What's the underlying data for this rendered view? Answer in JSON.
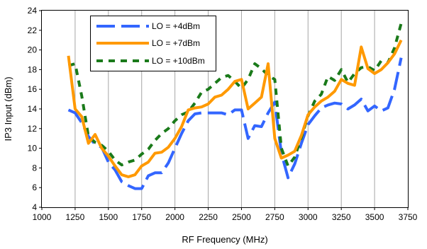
{
  "chart_data": {
    "type": "line",
    "title": "",
    "xlabel": "RF Frequency (MHz)",
    "ylabel": "IP3 Input (dBm)",
    "xlim": [
      1000,
      3750
    ],
    "ylim": [
      4,
      24
    ],
    "xticks": [
      1000,
      1250,
      1500,
      1750,
      2000,
      2250,
      2500,
      2750,
      3000,
      3250,
      3500,
      3750
    ],
    "yticks": [
      4,
      6,
      8,
      10,
      12,
      14,
      16,
      18,
      20,
      22,
      24
    ],
    "grid": "vertical",
    "legend": "top-left inside plot",
    "series": [
      {
        "name": "LO = +4dBm",
        "color": "#3366ff",
        "style": "long-dash",
        "x": [
          1200,
          1250,
          1300,
          1350,
          1400,
          1450,
          1500,
          1550,
          1600,
          1650,
          1700,
          1750,
          1800,
          1850,
          1900,
          1950,
          2000,
          2050,
          2100,
          2150,
          2200,
          2250,
          2300,
          2350,
          2400,
          2450,
          2500,
          2550,
          2600,
          2650,
          2700,
          2750,
          2800,
          2850,
          2900,
          2950,
          3000,
          3050,
          3100,
          3150,
          3200,
          3250,
          3300,
          3350,
          3400,
          3450,
          3500,
          3550,
          3600,
          3650,
          3700
        ],
        "y": [
          13.9,
          13.6,
          12.6,
          11.2,
          10.4,
          10.1,
          8.6,
          7.8,
          6.6,
          6.2,
          5.9,
          5.9,
          7.2,
          7.5,
          7.5,
          8.5,
          10.0,
          11.5,
          12.8,
          13.5,
          13.6,
          13.6,
          13.6,
          13.6,
          13.4,
          13.9,
          13.9,
          11.0,
          12.3,
          12.2,
          13.6,
          14.7,
          9.5,
          7.0,
          8.4,
          10.5,
          12.4,
          13.3,
          14.1,
          14.4,
          14.6,
          14.5,
          14.0,
          14.4,
          15.0,
          13.8,
          14.3,
          13.8,
          14.1,
          16.0,
          19.2
        ]
      },
      {
        "name": "LO = +7dBm",
        "color": "#ff9900",
        "style": "solid",
        "x": [
          1200,
          1250,
          1300,
          1350,
          1400,
          1450,
          1500,
          1550,
          1600,
          1650,
          1700,
          1750,
          1800,
          1850,
          1900,
          1950,
          2000,
          2050,
          2100,
          2150,
          2200,
          2250,
          2300,
          2350,
          2400,
          2450,
          2500,
          2550,
          2600,
          2650,
          2700,
          2750,
          2800,
          2850,
          2900,
          2950,
          3000,
          3050,
          3100,
          3150,
          3200,
          3250,
          3300,
          3350,
          3400,
          3450,
          3500,
          3550,
          3600,
          3650,
          3700
        ],
        "y": [
          19.4,
          14.0,
          13.2,
          10.5,
          11.4,
          10.0,
          9.2,
          8.2,
          7.3,
          7.1,
          7.3,
          8.2,
          8.6,
          9.5,
          9.6,
          10.1,
          11.0,
          12.2,
          13.9,
          14.1,
          14.2,
          14.5,
          15.2,
          15.4,
          16.0,
          16.8,
          17.0,
          14.0,
          14.6,
          15.2,
          18.6,
          11.0,
          9.0,
          9.3,
          9.7,
          11.3,
          13.4,
          14.2,
          14.8,
          15.2,
          15.8,
          17.0,
          16.6,
          16.4,
          20.3,
          18.1,
          17.6,
          18.0,
          18.7,
          19.6,
          21.0
        ]
      },
      {
        "name": "LO = +10dBm",
        "color": "#1a7a1a",
        "style": "short-dash",
        "x": [
          1200,
          1250,
          1300,
          1350,
          1400,
          1450,
          1500,
          1550,
          1600,
          1650,
          1700,
          1750,
          1800,
          1850,
          1900,
          1950,
          2000,
          2050,
          2100,
          2150,
          2200,
          2250,
          2300,
          2350,
          2400,
          2450,
          2500,
          2550,
          2600,
          2650,
          2700,
          2750,
          2800,
          2850,
          2900,
          2950,
          3000,
          3050,
          3100,
          3150,
          3200,
          3250,
          3300,
          3350,
          3400,
          3450,
          3500,
          3550,
          3600,
          3650,
          3700
        ],
        "y": [
          18.4,
          18.6,
          15.3,
          11.2,
          10.6,
          10.3,
          9.7,
          8.8,
          8.3,
          8.6,
          8.8,
          9.4,
          9.9,
          10.8,
          11.5,
          12.0,
          12.8,
          13.4,
          13.7,
          14.6,
          15.7,
          16.0,
          16.6,
          17.2,
          17.4,
          16.8,
          16.1,
          17.0,
          18.6,
          18.1,
          17.4,
          17.0,
          10.0,
          8.2,
          9.1,
          11.1,
          13.3,
          14.8,
          15.5,
          17.3,
          16.9,
          18.0,
          16.7,
          17.6,
          18.2,
          18.3,
          17.9,
          18.9,
          18.7,
          20.2,
          22.7
        ]
      }
    ]
  }
}
